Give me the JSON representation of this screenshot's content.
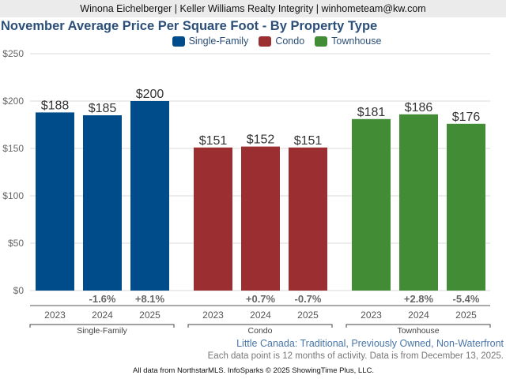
{
  "header": {
    "agent_line": "Winona Eichelberger | Keller Williams Realty Integrity | winhometeam@kw.com"
  },
  "chart_data": {
    "type": "bar",
    "title": "November Average Price Per Square Foot - By Property Type",
    "xlabel": "",
    "ylabel": "",
    "ylim": [
      0,
      250
    ],
    "yticks": [
      0,
      50,
      100,
      150,
      200,
      250
    ],
    "ytick_labels": [
      "$0",
      "$50",
      "$100",
      "$150",
      "$200",
      "$250"
    ],
    "grid": true,
    "legend_position": "top-center",
    "categories": [
      "2023",
      "2024",
      "2025"
    ],
    "series": [
      {
        "name": "Single-Family",
        "color": "#004b8a",
        "values": [
          188,
          185,
          200
        ],
        "value_labels": [
          "$188",
          "$185",
          "$200"
        ],
        "changes": [
          "",
          "-1.6%",
          "+8.1%"
        ]
      },
      {
        "name": "Condo",
        "color": "#9a2e30",
        "values": [
          151,
          152,
          151
        ],
        "value_labels": [
          "$151",
          "$152",
          "$151"
        ],
        "changes": [
          "",
          "+0.7%",
          "-0.7%"
        ]
      },
      {
        "name": "Townhouse",
        "color": "#428c35",
        "values": [
          181,
          186,
          176
        ],
        "value_labels": [
          "$181",
          "$186",
          "$176"
        ],
        "changes": [
          "",
          "+2.8%",
          "-5.4%"
        ]
      }
    ]
  },
  "footer": {
    "subtitle": "Little Canada: Traditional, Previously Owned, Non-Waterfront",
    "note": "Each data point is 12 months of activity. Data is from December 13, 2025.",
    "credit": "All data from NorthstarMLS. InfoSparks © 2025 ShowingTime Plus, LLC."
  }
}
